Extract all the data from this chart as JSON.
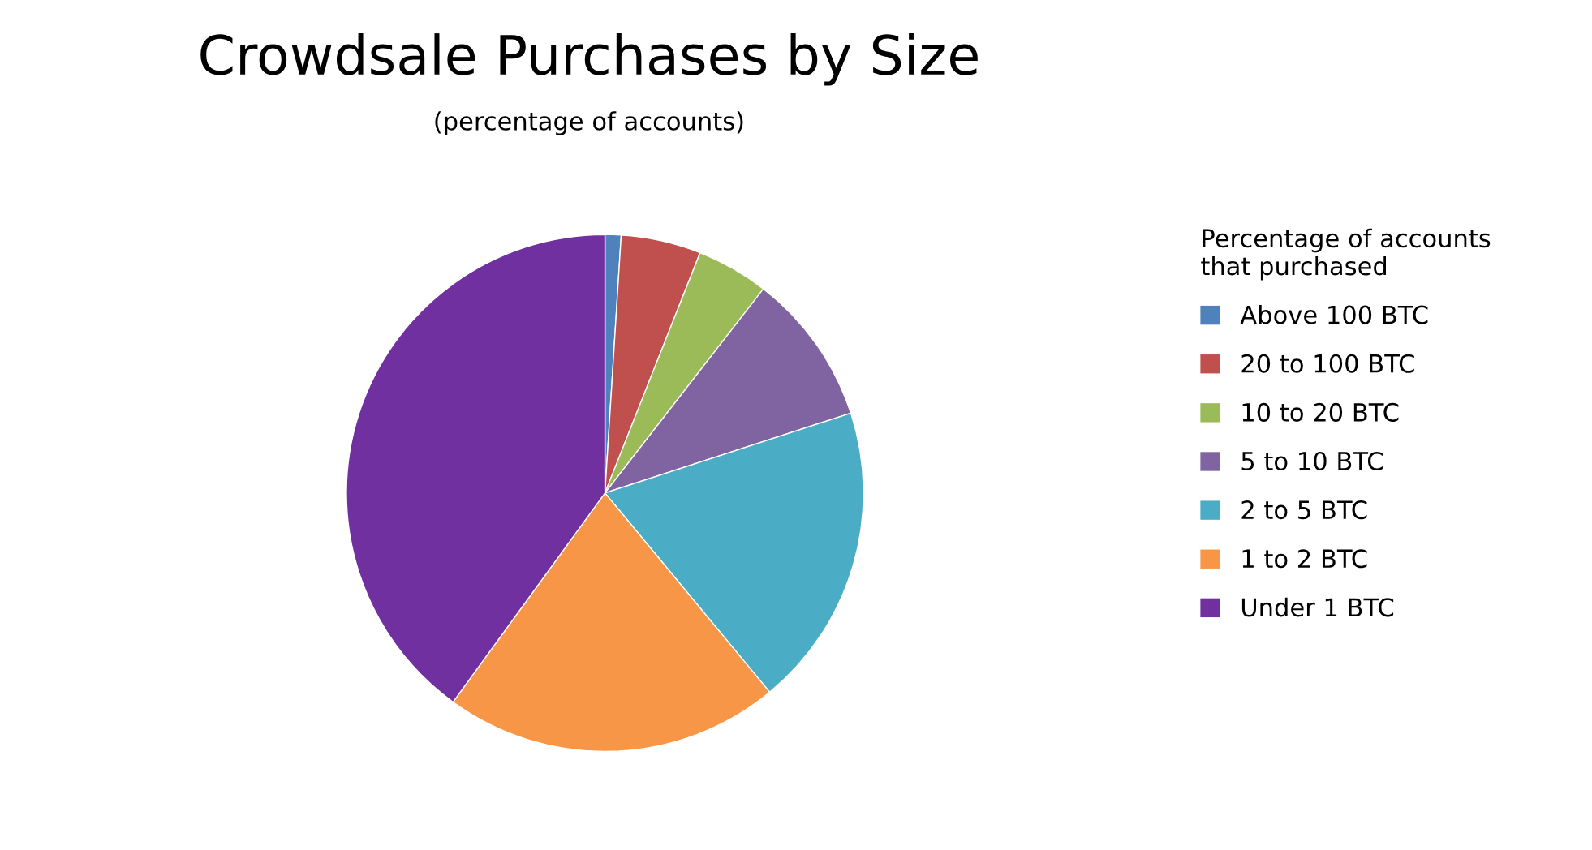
{
  "chart_data": {
    "type": "pie",
    "title": "Crowdsale Purchases by Size",
    "subtitle": "(percentage of accounts)",
    "legend_title": "Percentage of accounts\nthat purchased",
    "legend": "right",
    "categories": [
      "Above 100 BTC",
      "20 to 100 BTC",
      "10 to 20 BTC",
      "5 to 10 BTC",
      "2 to 5 BTC",
      "1 to 2 BTC",
      "Under 1 BTC"
    ],
    "values": [
      1,
      5,
      4.5,
      9.5,
      19,
      21,
      40
    ],
    "colors": [
      "#4f81bd",
      "#c0504d",
      "#9bbb59",
      "#8064a2",
      "#4bacc6",
      "#f79646",
      "#7030a0"
    ]
  }
}
